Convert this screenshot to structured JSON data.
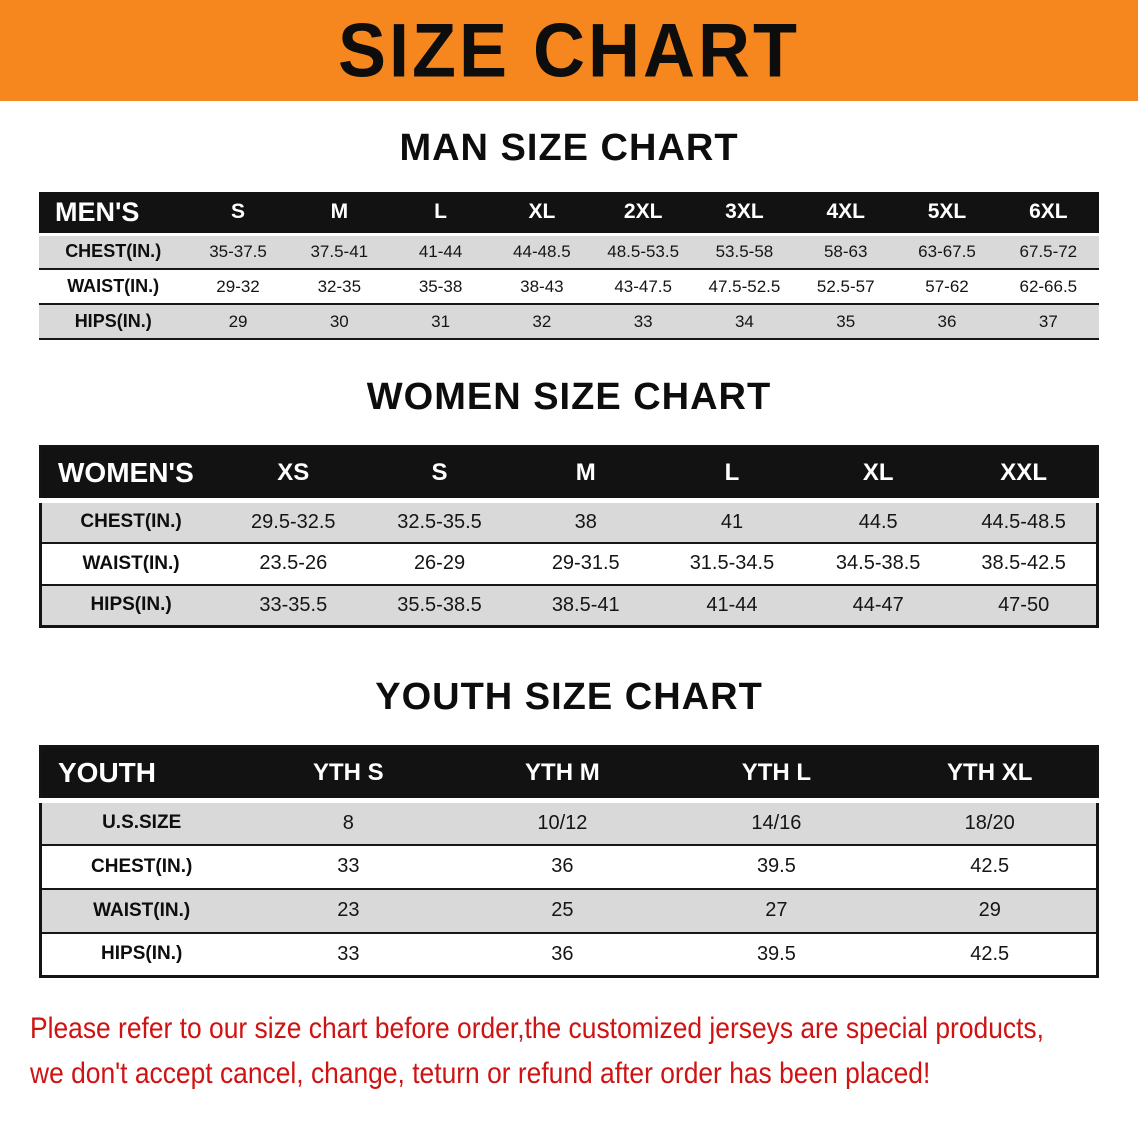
{
  "banner": {
    "title": "SIZE CHART"
  },
  "sections": [
    {
      "heading": "MAN SIZE CHART",
      "table": {
        "header": [
          "MEN'S",
          "S",
          "M",
          "L",
          "XL",
          "2XL",
          "3XL",
          "4XL",
          "5XL",
          "6XL"
        ],
        "rows": [
          {
            "label": "CHEST(IN.)",
            "values": [
              "35-37.5",
              "37.5-41",
              "41-44",
              "44-48.5",
              "48.5-53.5",
              "53.5-58",
              "58-63",
              "63-67.5",
              "67.5-72"
            ]
          },
          {
            "label": "WAIST(IN.)",
            "values": [
              "29-32",
              "32-35",
              "35-38",
              "38-43",
              "43-47.5",
              "47.5-52.5",
              "52.5-57",
              "57-62",
              "62-66.5"
            ]
          },
          {
            "label": "HIPS(IN.)",
            "values": [
              "29",
              "30",
              "31",
              "32",
              "33",
              "34",
              "35",
              "36",
              "37"
            ]
          }
        ]
      }
    },
    {
      "heading": "WOMEN SIZE CHART",
      "table": {
        "header": [
          "WOMEN'S",
          "XS",
          "S",
          "M",
          "L",
          "XL",
          "XXL"
        ],
        "rows": [
          {
            "label": "CHEST(IN.)",
            "values": [
              "29.5-32.5",
              "32.5-35.5",
              "38",
              "41",
              "44.5",
              "44.5-48.5"
            ]
          },
          {
            "label": "WAIST(IN.)",
            "values": [
              "23.5-26",
              "26-29",
              "29-31.5",
              "31.5-34.5",
              "34.5-38.5",
              "38.5-42.5"
            ]
          },
          {
            "label": "HIPS(IN.)",
            "values": [
              "33-35.5",
              "35.5-38.5",
              "38.5-41",
              "41-44",
              "44-47",
              "47-50"
            ]
          }
        ]
      }
    },
    {
      "heading": "YOUTH SIZE CHART",
      "table": {
        "header": [
          "YOUTH",
          "YTH S",
          "YTH M",
          "YTH L",
          "YTH XL"
        ],
        "rows": [
          {
            "label": "U.S.SIZE",
            "values": [
              "8",
              "10/12",
              "14/16",
              "18/20"
            ]
          },
          {
            "label": "CHEST(IN.)",
            "values": [
              "33",
              "36",
              "39.5",
              "42.5"
            ]
          },
          {
            "label": "WAIST(IN.)",
            "values": [
              "23",
              "25",
              "27",
              "29"
            ]
          },
          {
            "label": "HIPS(IN.)",
            "values": [
              "33",
              "36",
              "39.5",
              "42.5"
            ]
          }
        ]
      }
    }
  ],
  "footer": {
    "line1": "Please refer to our size chart before order,the customized jerseys are special products,",
    "line2": "we don't accept cancel, change, teturn or refund after order has been placed!"
  },
  "colors": {
    "banner_orange": "#F6861E",
    "header_black": "#121212",
    "row_stripe": "#D9D9D9",
    "notice_red": "#CF1313"
  }
}
